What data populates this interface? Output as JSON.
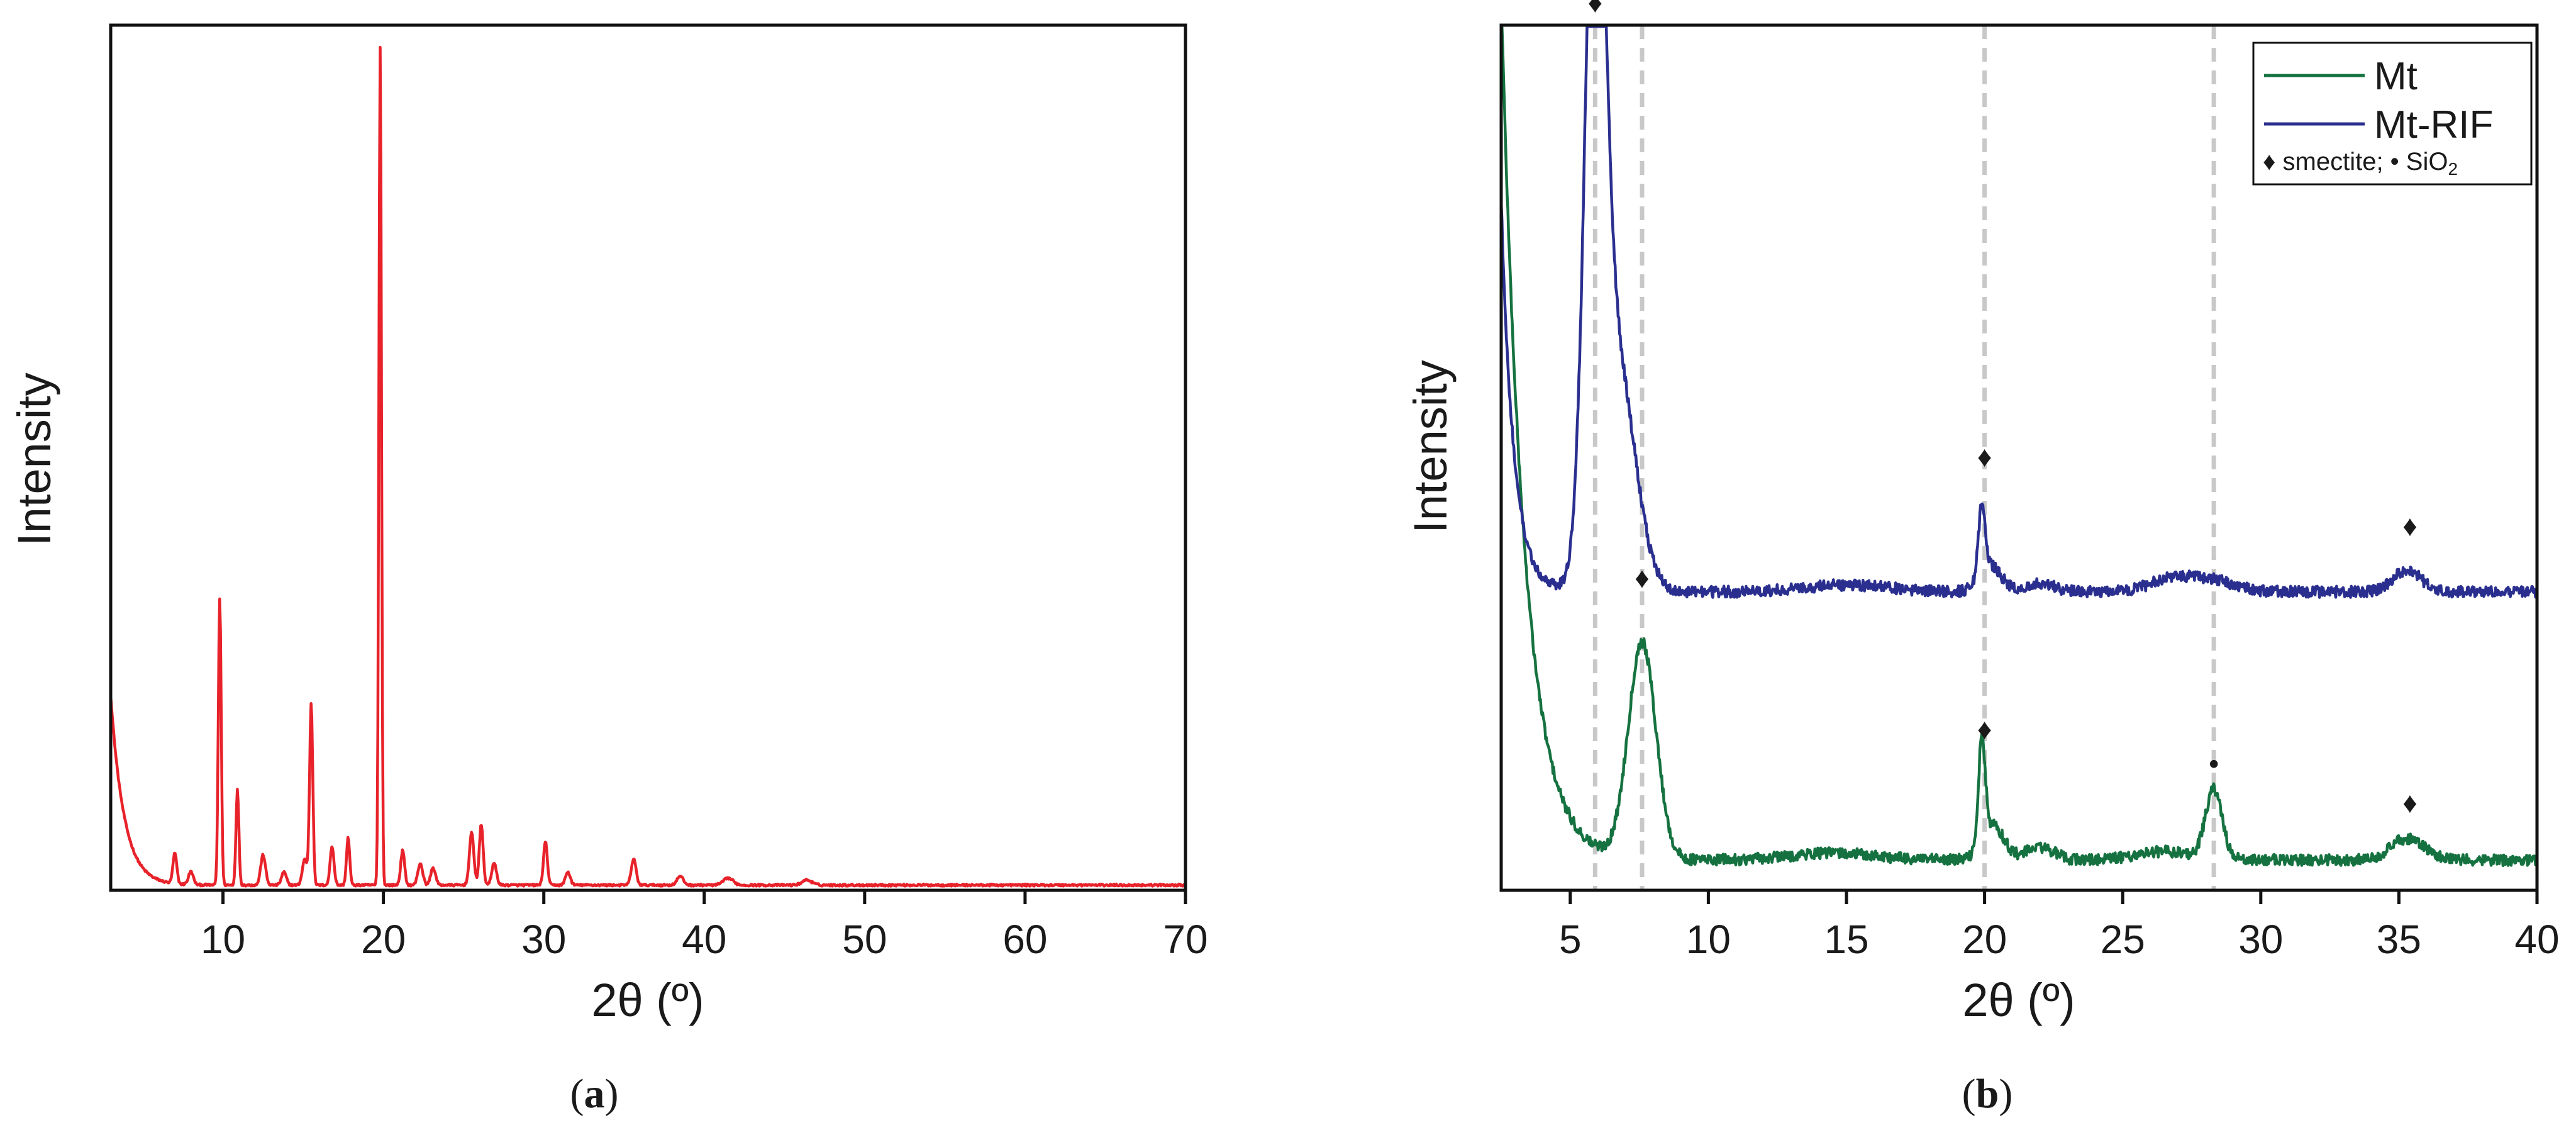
{
  "chart_data": [
    {
      "id": "a",
      "type": "line",
      "panel_label_parts": [
        "(",
        "a",
        ")"
      ],
      "xlabel": "2θ (º)",
      "ylabel": "Intensity",
      "xlim": [
        3,
        70
      ],
      "ylim": [
        0,
        100
      ],
      "xticks": [
        10,
        20,
        30,
        40,
        50,
        60,
        70
      ],
      "y_tick_labels": false,
      "grid": false,
      "legend": null,
      "series": [
        {
          "color": "#e8222a",
          "baseline": 0.6,
          "low_angle_decay": {
            "start_x": 3,
            "height": 22,
            "rate": 1.2
          },
          "peaks": [
            [
              7.0,
              3.5,
              0.12
            ],
            [
              8.0,
              1.5,
              0.15
            ],
            [
              9.8,
              33,
              0.09
            ],
            [
              10.9,
              11,
              0.09
            ],
            [
              12.5,
              3.5,
              0.15
            ],
            [
              13.8,
              1.5,
              0.15
            ],
            [
              15.5,
              21,
              0.1
            ],
            [
              15.1,
              3,
              0.15
            ],
            [
              16.8,
              4.5,
              0.12
            ],
            [
              17.8,
              5.5,
              0.1
            ],
            [
              19.8,
              97,
              0.08
            ],
            [
              21.2,
              4,
              0.12
            ],
            [
              22.3,
              2.5,
              0.15
            ],
            [
              23.1,
              2,
              0.15
            ],
            [
              25.5,
              6,
              0.14
            ],
            [
              26.1,
              7,
              0.12
            ],
            [
              26.9,
              2.5,
              0.15
            ],
            [
              30.1,
              5,
              0.12
            ],
            [
              31.5,
              1.5,
              0.15
            ],
            [
              35.6,
              3,
              0.15
            ],
            [
              38.5,
              1,
              0.2
            ],
            [
              41.5,
              0.8,
              0.3
            ],
            [
              46.4,
              0.6,
              0.3
            ]
          ]
        }
      ]
    },
    {
      "id": "b",
      "type": "line",
      "panel_label_parts": [
        "(",
        "b",
        ")"
      ],
      "xlabel": "2θ (º)",
      "ylabel": "Intensity",
      "xlim": [
        2.5,
        40
      ],
      "ylim": [
        0,
        100
      ],
      "xticks": [
        5,
        10,
        15,
        20,
        25,
        30,
        35,
        40
      ],
      "y_tick_labels": false,
      "grid": false,
      "reference_lines_x": [
        5.9,
        7.6,
        20.0,
        28.3
      ],
      "legend": {
        "position": "top-right",
        "entries": [
          "Mt",
          "Mt-RIF"
        ],
        "note_parts": [
          "♦ smectite; • SiO",
          "2"
        ]
      },
      "series": [
        {
          "name": "Mt",
          "color": "#157240",
          "baseline": 3.5,
          "low_angle_decay": {
            "start_x": 2.5,
            "height": 100,
            "rate": 1.2
          },
          "peaks": [
            [
              7.6,
              25,
              0.5
            ],
            [
              14.5,
              0.8,
              1.5
            ],
            [
              19.9,
              12,
              0.12
            ],
            [
              20.3,
              4,
              0.4
            ],
            [
              22.0,
              1.5,
              0.5
            ],
            [
              26.5,
              1,
              1.0
            ],
            [
              28.3,
              8,
              0.3
            ],
            [
              35.3,
              2.5,
              0.6
            ]
          ]
        },
        {
          "name": "Mt-RIF",
          "color": "#2a2f8f",
          "baseline": 34.5,
          "low_angle_decay": {
            "start_x": 2.5,
            "height": 45,
            "rate": 2.2
          },
          "peaks": [
            [
              5.9,
              78,
              0.35
            ],
            [
              6.6,
              28,
              0.7
            ],
            [
              15.0,
              0.8,
              1.5
            ],
            [
              19.9,
              8,
              0.12
            ],
            [
              20.2,
              3,
              0.4
            ],
            [
              22.0,
              1,
              0.5
            ],
            [
              26.8,
              1.5,
              0.8
            ],
            [
              28.3,
              1.2,
              0.8
            ],
            [
              35.3,
              2.5,
              0.5
            ]
          ]
        }
      ],
      "annotations": [
        {
          "text": "♦",
          "x": 5.9,
          "y": 101.5
        },
        {
          "text": "♦",
          "x": 7.6,
          "y": 35
        },
        {
          "text": "♦",
          "x": 20.0,
          "y": 49
        },
        {
          "text": "♦",
          "x": 20.0,
          "y": 17.5
        },
        {
          "text": "♦",
          "x": 35.4,
          "y": 41
        },
        {
          "text": "♦",
          "x": 35.4,
          "y": 9
        },
        {
          "text": "•",
          "x": 28.3,
          "y": 13.5
        }
      ]
    }
  ]
}
